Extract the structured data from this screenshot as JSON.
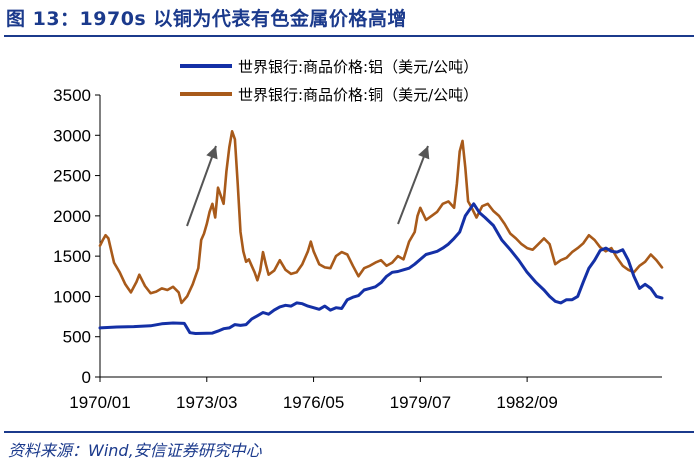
{
  "title": "图 13：1970s 以铜为代表有色金属价格高增",
  "source": "资料来源：Wind,安信证券研究中心",
  "chart_data": {
    "type": "line",
    "title": "图 13：1970s 以铜为代表有色金属价格高增",
    "xlabel": "",
    "ylabel": "",
    "ylim": [
      0,
      3500
    ],
    "yticks": [
      0,
      500,
      1000,
      1500,
      2000,
      2500,
      3000,
      3500
    ],
    "x_tick_labels": [
      "1970/01",
      "1973/03",
      "1976/05",
      "1979/07",
      "1982/09"
    ],
    "x_tick_months": [
      0,
      38,
      76,
      114,
      152
    ],
    "x_range_months": [
      0,
      200
    ],
    "legend_position": "top",
    "grid": false,
    "colors": {
      "aluminum": "#1430a6",
      "copper": "#a85a1a",
      "arrow": "#555555"
    },
    "series": [
      {
        "name": "世界银行:商品价格:铝（美元/公吨）",
        "color": "#1430a6",
        "points": [
          [
            0,
            610
          ],
          [
            6,
            620
          ],
          [
            12,
            625
          ],
          [
            18,
            635
          ],
          [
            22,
            660
          ],
          [
            26,
            670
          ],
          [
            30,
            665
          ],
          [
            32,
            550
          ],
          [
            34,
            540
          ],
          [
            40,
            545
          ],
          [
            42,
            570
          ],
          [
            44,
            600
          ],
          [
            46,
            610
          ],
          [
            48,
            650
          ],
          [
            50,
            640
          ],
          [
            52,
            650
          ],
          [
            54,
            720
          ],
          [
            56,
            760
          ],
          [
            58,
            800
          ],
          [
            60,
            780
          ],
          [
            62,
            830
          ],
          [
            64,
            870
          ],
          [
            66,
            890
          ],
          [
            68,
            880
          ],
          [
            70,
            920
          ],
          [
            72,
            910
          ],
          [
            74,
            880
          ],
          [
            76,
            860
          ],
          [
            78,
            840
          ],
          [
            80,
            880
          ],
          [
            82,
            830
          ],
          [
            84,
            860
          ],
          [
            86,
            850
          ],
          [
            88,
            960
          ],
          [
            90,
            990
          ],
          [
            92,
            1010
          ],
          [
            94,
            1080
          ],
          [
            96,
            1100
          ],
          [
            98,
            1120
          ],
          [
            100,
            1170
          ],
          [
            102,
            1250
          ],
          [
            104,
            1300
          ],
          [
            106,
            1310
          ],
          [
            108,
            1330
          ],
          [
            110,
            1350
          ],
          [
            112,
            1400
          ],
          [
            114,
            1460
          ],
          [
            116,
            1520
          ],
          [
            118,
            1540
          ],
          [
            120,
            1560
          ],
          [
            122,
            1600
          ],
          [
            124,
            1650
          ],
          [
            126,
            1720
          ],
          [
            128,
            1800
          ],
          [
            130,
            2000
          ],
          [
            132,
            2100
          ],
          [
            133,
            2150
          ],
          [
            135,
            2040
          ],
          [
            137,
            1980
          ],
          [
            140,
            1880
          ],
          [
            143,
            1700
          ],
          [
            146,
            1580
          ],
          [
            149,
            1450
          ],
          [
            152,
            1300
          ],
          [
            155,
            1180
          ],
          [
            158,
            1080
          ],
          [
            160,
            1000
          ],
          [
            162,
            940
          ],
          [
            164,
            920
          ],
          [
            166,
            960
          ],
          [
            168,
            960
          ],
          [
            170,
            1000
          ],
          [
            172,
            1180
          ],
          [
            174,
            1350
          ],
          [
            176,
            1450
          ],
          [
            178,
            1570
          ],
          [
            180,
            1600
          ],
          [
            182,
            1560
          ],
          [
            184,
            1550
          ],
          [
            186,
            1580
          ],
          [
            188,
            1450
          ],
          [
            190,
            1250
          ],
          [
            192,
            1100
          ],
          [
            194,
            1150
          ],
          [
            196,
            1100
          ],
          [
            198,
            1000
          ],
          [
            200,
            980
          ]
        ]
      },
      {
        "name": "世界银行:商品价格:铜（美元/公吨）",
        "color": "#a85a1a",
        "points": [
          [
            0,
            1630
          ],
          [
            1,
            1700
          ],
          [
            2,
            1760
          ],
          [
            3,
            1720
          ],
          [
            5,
            1420
          ],
          [
            7,
            1300
          ],
          [
            9,
            1150
          ],
          [
            11,
            1050
          ],
          [
            13,
            1180
          ],
          [
            14,
            1270
          ],
          [
            16,
            1130
          ],
          [
            18,
            1040
          ],
          [
            20,
            1060
          ],
          [
            22,
            1100
          ],
          [
            24,
            1080
          ],
          [
            26,
            1120
          ],
          [
            28,
            1050
          ],
          [
            29,
            920
          ],
          [
            31,
            1000
          ],
          [
            33,
            1150
          ],
          [
            35,
            1350
          ],
          [
            36,
            1700
          ],
          [
            37,
            1780
          ],
          [
            38,
            1900
          ],
          [
            39,
            2050
          ],
          [
            40,
            2150
          ],
          [
            41,
            1980
          ],
          [
            42,
            2350
          ],
          [
            43,
            2250
          ],
          [
            44,
            2150
          ],
          [
            45,
            2550
          ],
          [
            46,
            2850
          ],
          [
            47,
            3050
          ],
          [
            48,
            2950
          ],
          [
            49,
            2400
          ],
          [
            50,
            1800
          ],
          [
            51,
            1560
          ],
          [
            52,
            1430
          ],
          [
            53,
            1460
          ],
          [
            54,
            1380
          ],
          [
            55,
            1300
          ],
          [
            56,
            1200
          ],
          [
            57,
            1320
          ],
          [
            58,
            1550
          ],
          [
            59,
            1400
          ],
          [
            60,
            1270
          ],
          [
            62,
            1320
          ],
          [
            64,
            1450
          ],
          [
            66,
            1330
          ],
          [
            68,
            1280
          ],
          [
            70,
            1300
          ],
          [
            72,
            1400
          ],
          [
            74,
            1560
          ],
          [
            75,
            1680
          ],
          [
            76,
            1560
          ],
          [
            78,
            1400
          ],
          [
            80,
            1360
          ],
          [
            82,
            1350
          ],
          [
            84,
            1500
          ],
          [
            86,
            1550
          ],
          [
            88,
            1520
          ],
          [
            90,
            1380
          ],
          [
            92,
            1250
          ],
          [
            94,
            1350
          ],
          [
            96,
            1380
          ],
          [
            98,
            1420
          ],
          [
            100,
            1450
          ],
          [
            102,
            1380
          ],
          [
            104,
            1420
          ],
          [
            106,
            1500
          ],
          [
            108,
            1460
          ],
          [
            110,
            1680
          ],
          [
            112,
            1800
          ],
          [
            113,
            2000
          ],
          [
            114,
            2100
          ],
          [
            116,
            1950
          ],
          [
            118,
            2000
          ],
          [
            120,
            2050
          ],
          [
            122,
            2150
          ],
          [
            124,
            2180
          ],
          [
            126,
            2100
          ],
          [
            127,
            2400
          ],
          [
            128,
            2800
          ],
          [
            129,
            2930
          ],
          [
            130,
            2600
          ],
          [
            131,
            2180
          ],
          [
            132,
            2120
          ],
          [
            134,
            1980
          ],
          [
            136,
            2120
          ],
          [
            138,
            2150
          ],
          [
            140,
            2060
          ],
          [
            142,
            2000
          ],
          [
            144,
            1900
          ],
          [
            146,
            1780
          ],
          [
            148,
            1720
          ],
          [
            150,
            1650
          ],
          [
            152,
            1600
          ],
          [
            154,
            1580
          ],
          [
            156,
            1650
          ],
          [
            158,
            1720
          ],
          [
            160,
            1650
          ],
          [
            162,
            1400
          ],
          [
            164,
            1450
          ],
          [
            166,
            1480
          ],
          [
            168,
            1550
          ],
          [
            170,
            1600
          ],
          [
            172,
            1660
          ],
          [
            174,
            1760
          ],
          [
            176,
            1700
          ],
          [
            178,
            1610
          ],
          [
            180,
            1560
          ],
          [
            182,
            1600
          ],
          [
            184,
            1480
          ],
          [
            186,
            1380
          ],
          [
            188,
            1330
          ],
          [
            190,
            1300
          ],
          [
            192,
            1380
          ],
          [
            194,
            1430
          ],
          [
            196,
            1520
          ],
          [
            198,
            1450
          ],
          [
            200,
            1360
          ]
        ]
      }
    ]
  }
}
